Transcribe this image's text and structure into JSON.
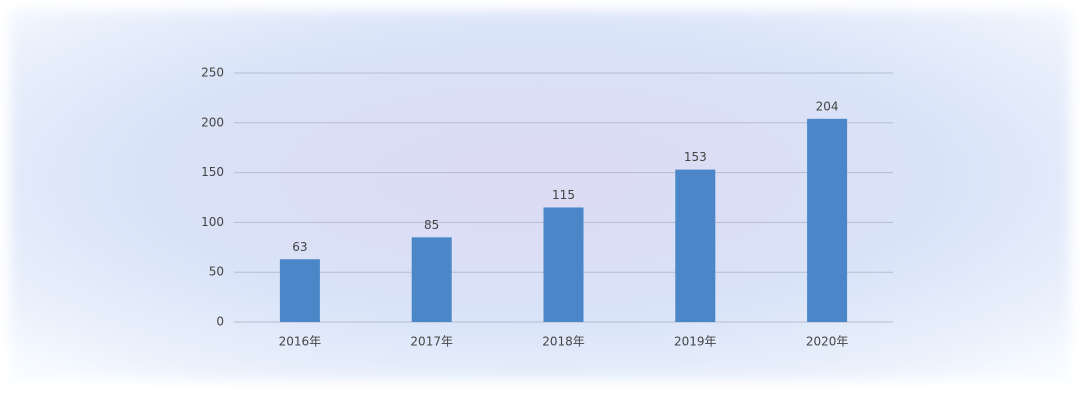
{
  "chart_data": {
    "type": "bar",
    "categories": [
      "2016年",
      "2017年",
      "2018年",
      "2019年",
      "2020年"
    ],
    "values": [
      63,
      85,
      115,
      153,
      204
    ],
    "color": "#4a86c8",
    "ylim": [
      0,
      250
    ],
    "yticks": [
      0,
      50,
      100,
      150,
      200,
      250
    ],
    "grid": true
  }
}
